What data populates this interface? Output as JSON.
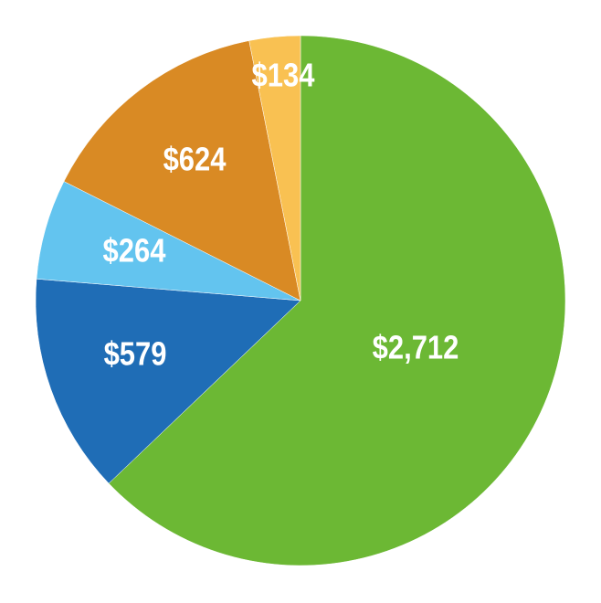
{
  "chart_data": {
    "type": "pie",
    "start_angle": "12 o'clock",
    "direction": "clockwise",
    "slices": [
      {
        "label": "$2,712",
        "value": 2712,
        "color": "#6cb834"
      },
      {
        "label": "$579",
        "value": 579,
        "color": "#1f6db6"
      },
      {
        "label": "$264",
        "value": 264,
        "color": "#63c4ef"
      },
      {
        "label": "$624",
        "value": 624,
        "color": "#d98a24"
      },
      {
        "label": "$134",
        "value": 134,
        "color": "#f9c152"
      }
    ],
    "legend": "none"
  }
}
